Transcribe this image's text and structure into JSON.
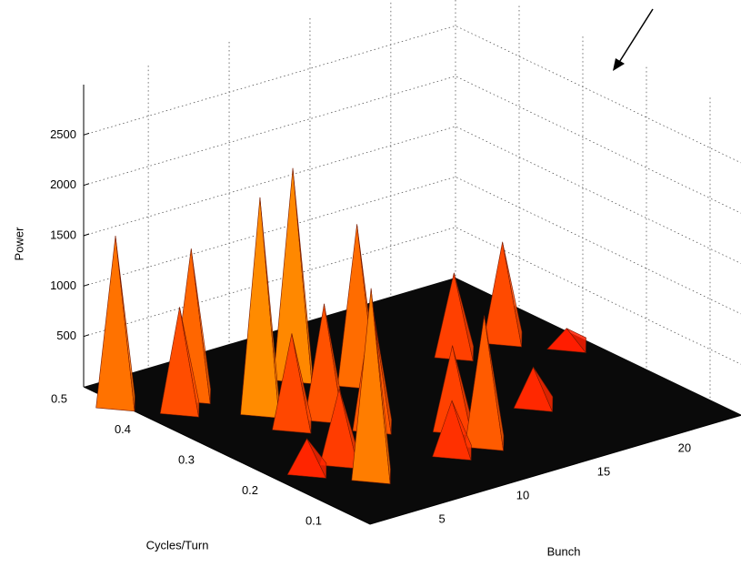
{
  "chart_data": {
    "type": "surface3d",
    "xlabel": "Cycles/Turn",
    "ylabel": "Bunch",
    "zlabel": "Power",
    "xlim": [
      0.05,
      0.5
    ],
    "xticks": [
      0.1,
      0.2,
      0.3,
      0.4,
      0.5
    ],
    "ylim": [
      1,
      24
    ],
    "yticks": [
      5,
      10,
      15,
      20
    ],
    "zlim": [
      0,
      3000
    ],
    "zticks": [
      500,
      1000,
      1500,
      2000,
      2500
    ],
    "grid": true,
    "x": [
      0.35,
      0.3,
      0.35,
      0.4,
      0.35,
      0.42,
      0.45,
      0.2,
      0.35,
      0.4,
      0.3,
      0.3,
      0.25,
      0.2,
      0.15,
      0.15,
      0.2,
      0.2,
      0.15
    ],
    "y": [
      21,
      23,
      18,
      10,
      12,
      4.5,
      1,
      17,
      6,
      3,
      8,
      6,
      9,
      12,
      12,
      10,
      5,
      3,
      5
    ],
    "z": [
      950,
      150,
      785,
      2050,
      1550,
      1450,
      1650,
      350,
      2100,
      1000,
      1100,
      900,
      1200,
      800,
      1250,
      500,
      700,
      300,
      1850
    ]
  }
}
